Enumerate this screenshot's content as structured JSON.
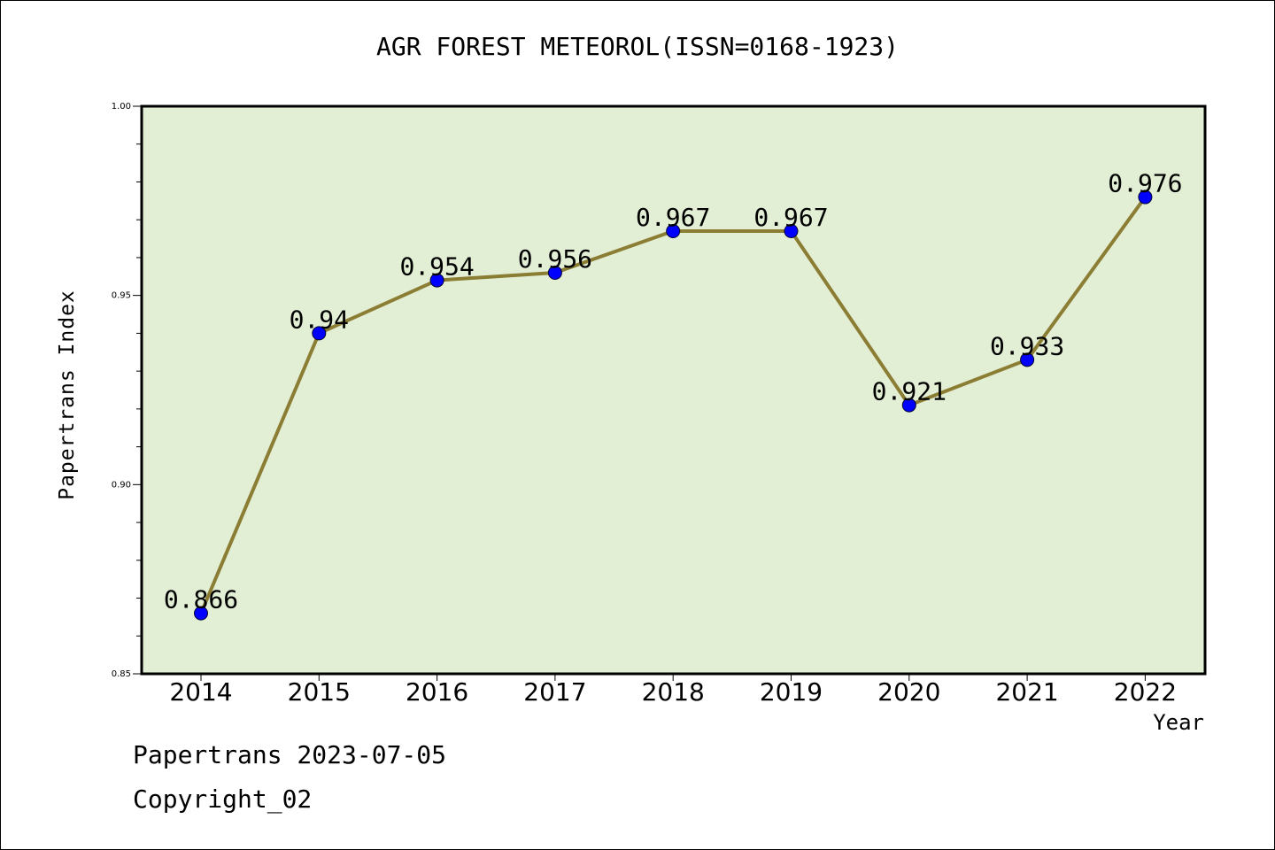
{
  "chart_data": {
    "type": "line",
    "title": "AGR FOREST METEOROL(ISSN=0168-1923)",
    "xlabel": "Year",
    "ylabel": "Papertrans Index",
    "categories": [
      "2014",
      "2015",
      "2016",
      "2017",
      "2018",
      "2019",
      "2020",
      "2021",
      "2022"
    ],
    "values": [
      0.866,
      0.94,
      0.954,
      0.956,
      0.967,
      0.967,
      0.921,
      0.933,
      0.976
    ],
    "data_labels": [
      "0.866",
      "0.94",
      "0.954",
      "0.956",
      "0.967",
      "0.967",
      "0.921",
      "0.933",
      "0.976"
    ],
    "ylim": [
      0.85,
      1.0
    ],
    "yticks": [
      "0.85",
      "0.90",
      "0.95",
      "1.00"
    ],
    "ytick_values": [
      0.85,
      0.9,
      0.95,
      1.0
    ],
    "y_minor_step": 0.01,
    "grid": false,
    "colors": {
      "line": "#8b7d33",
      "marker": "#0000ff",
      "plot_background": "#e2efd5"
    }
  },
  "footer": {
    "date": "Papertrans 2023-07-05",
    "copyright": "Copyright_02"
  }
}
